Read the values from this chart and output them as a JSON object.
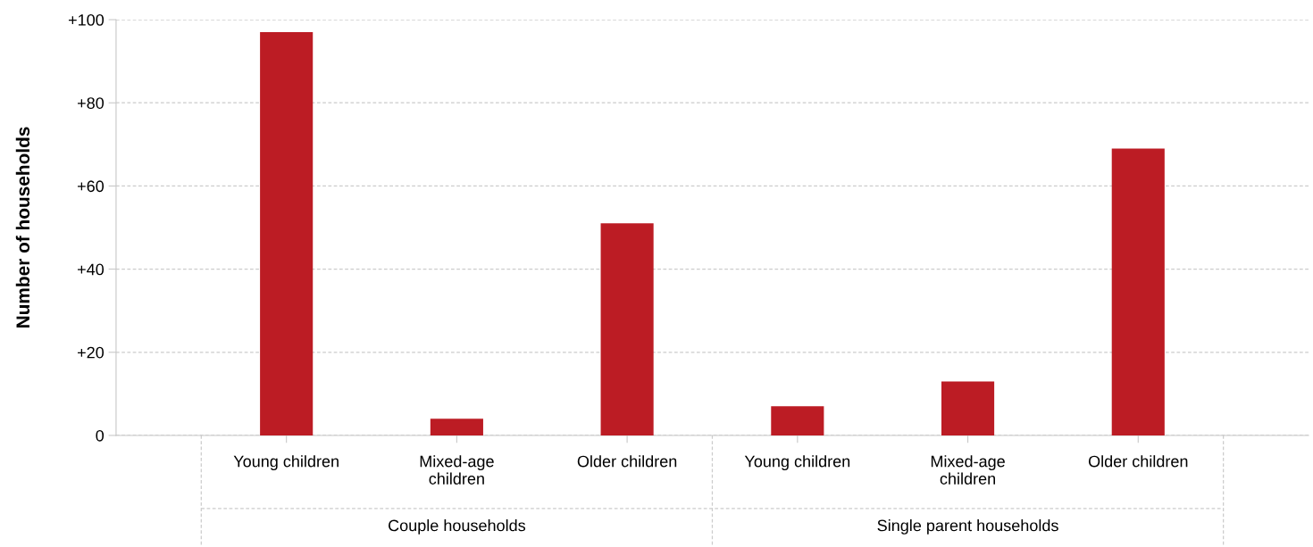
{
  "chart_data": {
    "type": "bar",
    "ylabel": "Number of households",
    "categories": [
      "Young children",
      "Mixed-age\nchildren",
      "Older children",
      "Young children",
      "Mixed-age\nchildren",
      "Older children"
    ],
    "values": [
      97,
      4,
      51,
      7,
      13,
      69
    ],
    "color": "#bc1c24",
    "annotations": [
      "Couple households",
      "Single parent households"
    ],
    "ylim": [
      0,
      100
    ],
    "yticks": [
      0,
      {
        "value": 20,
        "label": "+20"
      },
      {
        "value": 40,
        "label": "+40"
      },
      {
        "value": 60,
        "label": "+60"
      },
      {
        "value": 80,
        "label": "+80"
      },
      {
        "value": 100,
        "label": "+100"
      }
    ],
    "grid": "y",
    "legend": false
  }
}
